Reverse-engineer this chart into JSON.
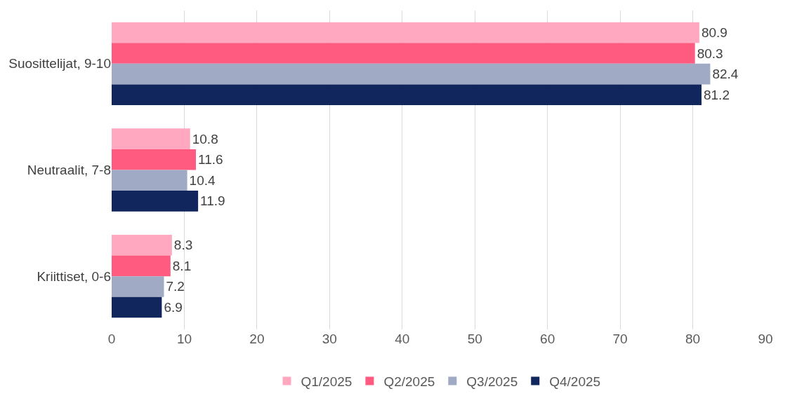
{
  "chart_data": {
    "type": "bar",
    "orientation": "horizontal",
    "categories": [
      "Suosittelijat, 9-10",
      "Neutraalit, 7-8",
      "Kriittiset, 0-6"
    ],
    "series": [
      {
        "name": "Q1/2025",
        "color": "#ffa8c0",
        "values": [
          80.9,
          10.8,
          8.3
        ]
      },
      {
        "name": "Q2/2025",
        "color": "#ff5a80",
        "values": [
          80.3,
          11.6,
          8.1
        ]
      },
      {
        "name": "Q3/2025",
        "color": "#a0aac4",
        "values": [
          82.4,
          10.4,
          7.2
        ]
      },
      {
        "name": "Q4/2025",
        "color": "#12265e",
        "values": [
          81.2,
          11.9,
          6.9
        ]
      }
    ],
    "xlim": [
      0,
      90
    ],
    "xticks": [
      0,
      10,
      20,
      30,
      40,
      50,
      60,
      70,
      80,
      90
    ],
    "grid": "x",
    "legend": "bottom",
    "data_labels": true
  }
}
